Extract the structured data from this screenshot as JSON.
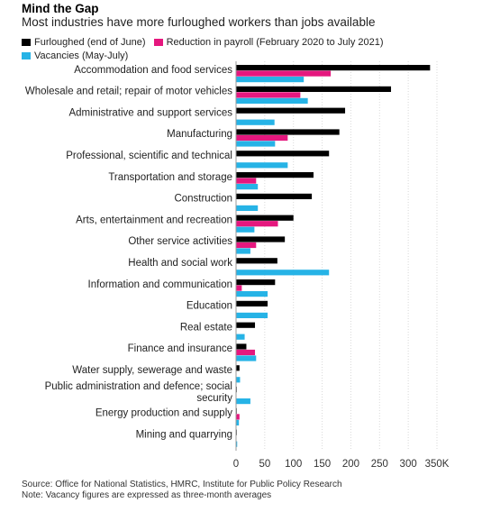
{
  "header": {
    "title": "Mind the Gap",
    "subtitle": "Most industries have more furloughed workers than jobs available"
  },
  "colors": {
    "furloughed": "#000000",
    "reduction": "#e5177e",
    "vacancies": "#26b3e6"
  },
  "footer": {
    "source": "Source: Office for National Statistics, HMRC, Institute for Public Policy Research",
    "note": "Note: Vacancy figures are expressed as three-month averages"
  },
  "chart_data": {
    "type": "bar",
    "orientation": "horizontal",
    "categories": [
      "Accommodation and food services",
      "Wholesale and retail; repair of motor vehicles",
      "Administrative and support services",
      "Manufacturing",
      "Professional, scientific and technical",
      "Transportation and storage",
      "Construction",
      "Arts, entertainment and recreation",
      "Other service activities",
      "Health and social work",
      "Information and communication",
      "Education",
      "Real estate",
      "Finance and insurance",
      "Water supply, sewerage and waste",
      "Public administration and defence; social security",
      "Energy production and supply",
      "Mining and quarrying"
    ],
    "series": [
      {
        "name": "Furloughed (end of June)",
        "color": "#000000",
        "values": [
          338,
          270,
          190,
          180,
          162,
          135,
          132,
          100,
          85,
          72,
          68,
          55,
          33,
          18,
          6,
          1,
          1,
          1
        ]
      },
      {
        "name": "Reduction in payroll (February 2020 to July 2021)",
        "color": "#e5177e",
        "values": [
          165,
          112,
          0,
          90,
          0,
          35,
          0,
          73,
          35,
          0,
          10,
          0,
          0,
          33,
          0,
          0,
          6,
          0
        ]
      },
      {
        "name": "Vacancies (May-July)",
        "color": "#26b3e6",
        "values": [
          118,
          125,
          67,
          68,
          90,
          38,
          38,
          32,
          25,
          162,
          55,
          55,
          15,
          35,
          7,
          25,
          5,
          2
        ]
      }
    ],
    "xticks": [
      0,
      50,
      100,
      150,
      200,
      250,
      300,
      350
    ],
    "xtick_labels": [
      "0",
      "50",
      "100",
      "150",
      "200",
      "250",
      "300",
      "350K"
    ],
    "xlim": [
      0,
      350
    ],
    "grid": true,
    "legend_position": "top-left"
  }
}
